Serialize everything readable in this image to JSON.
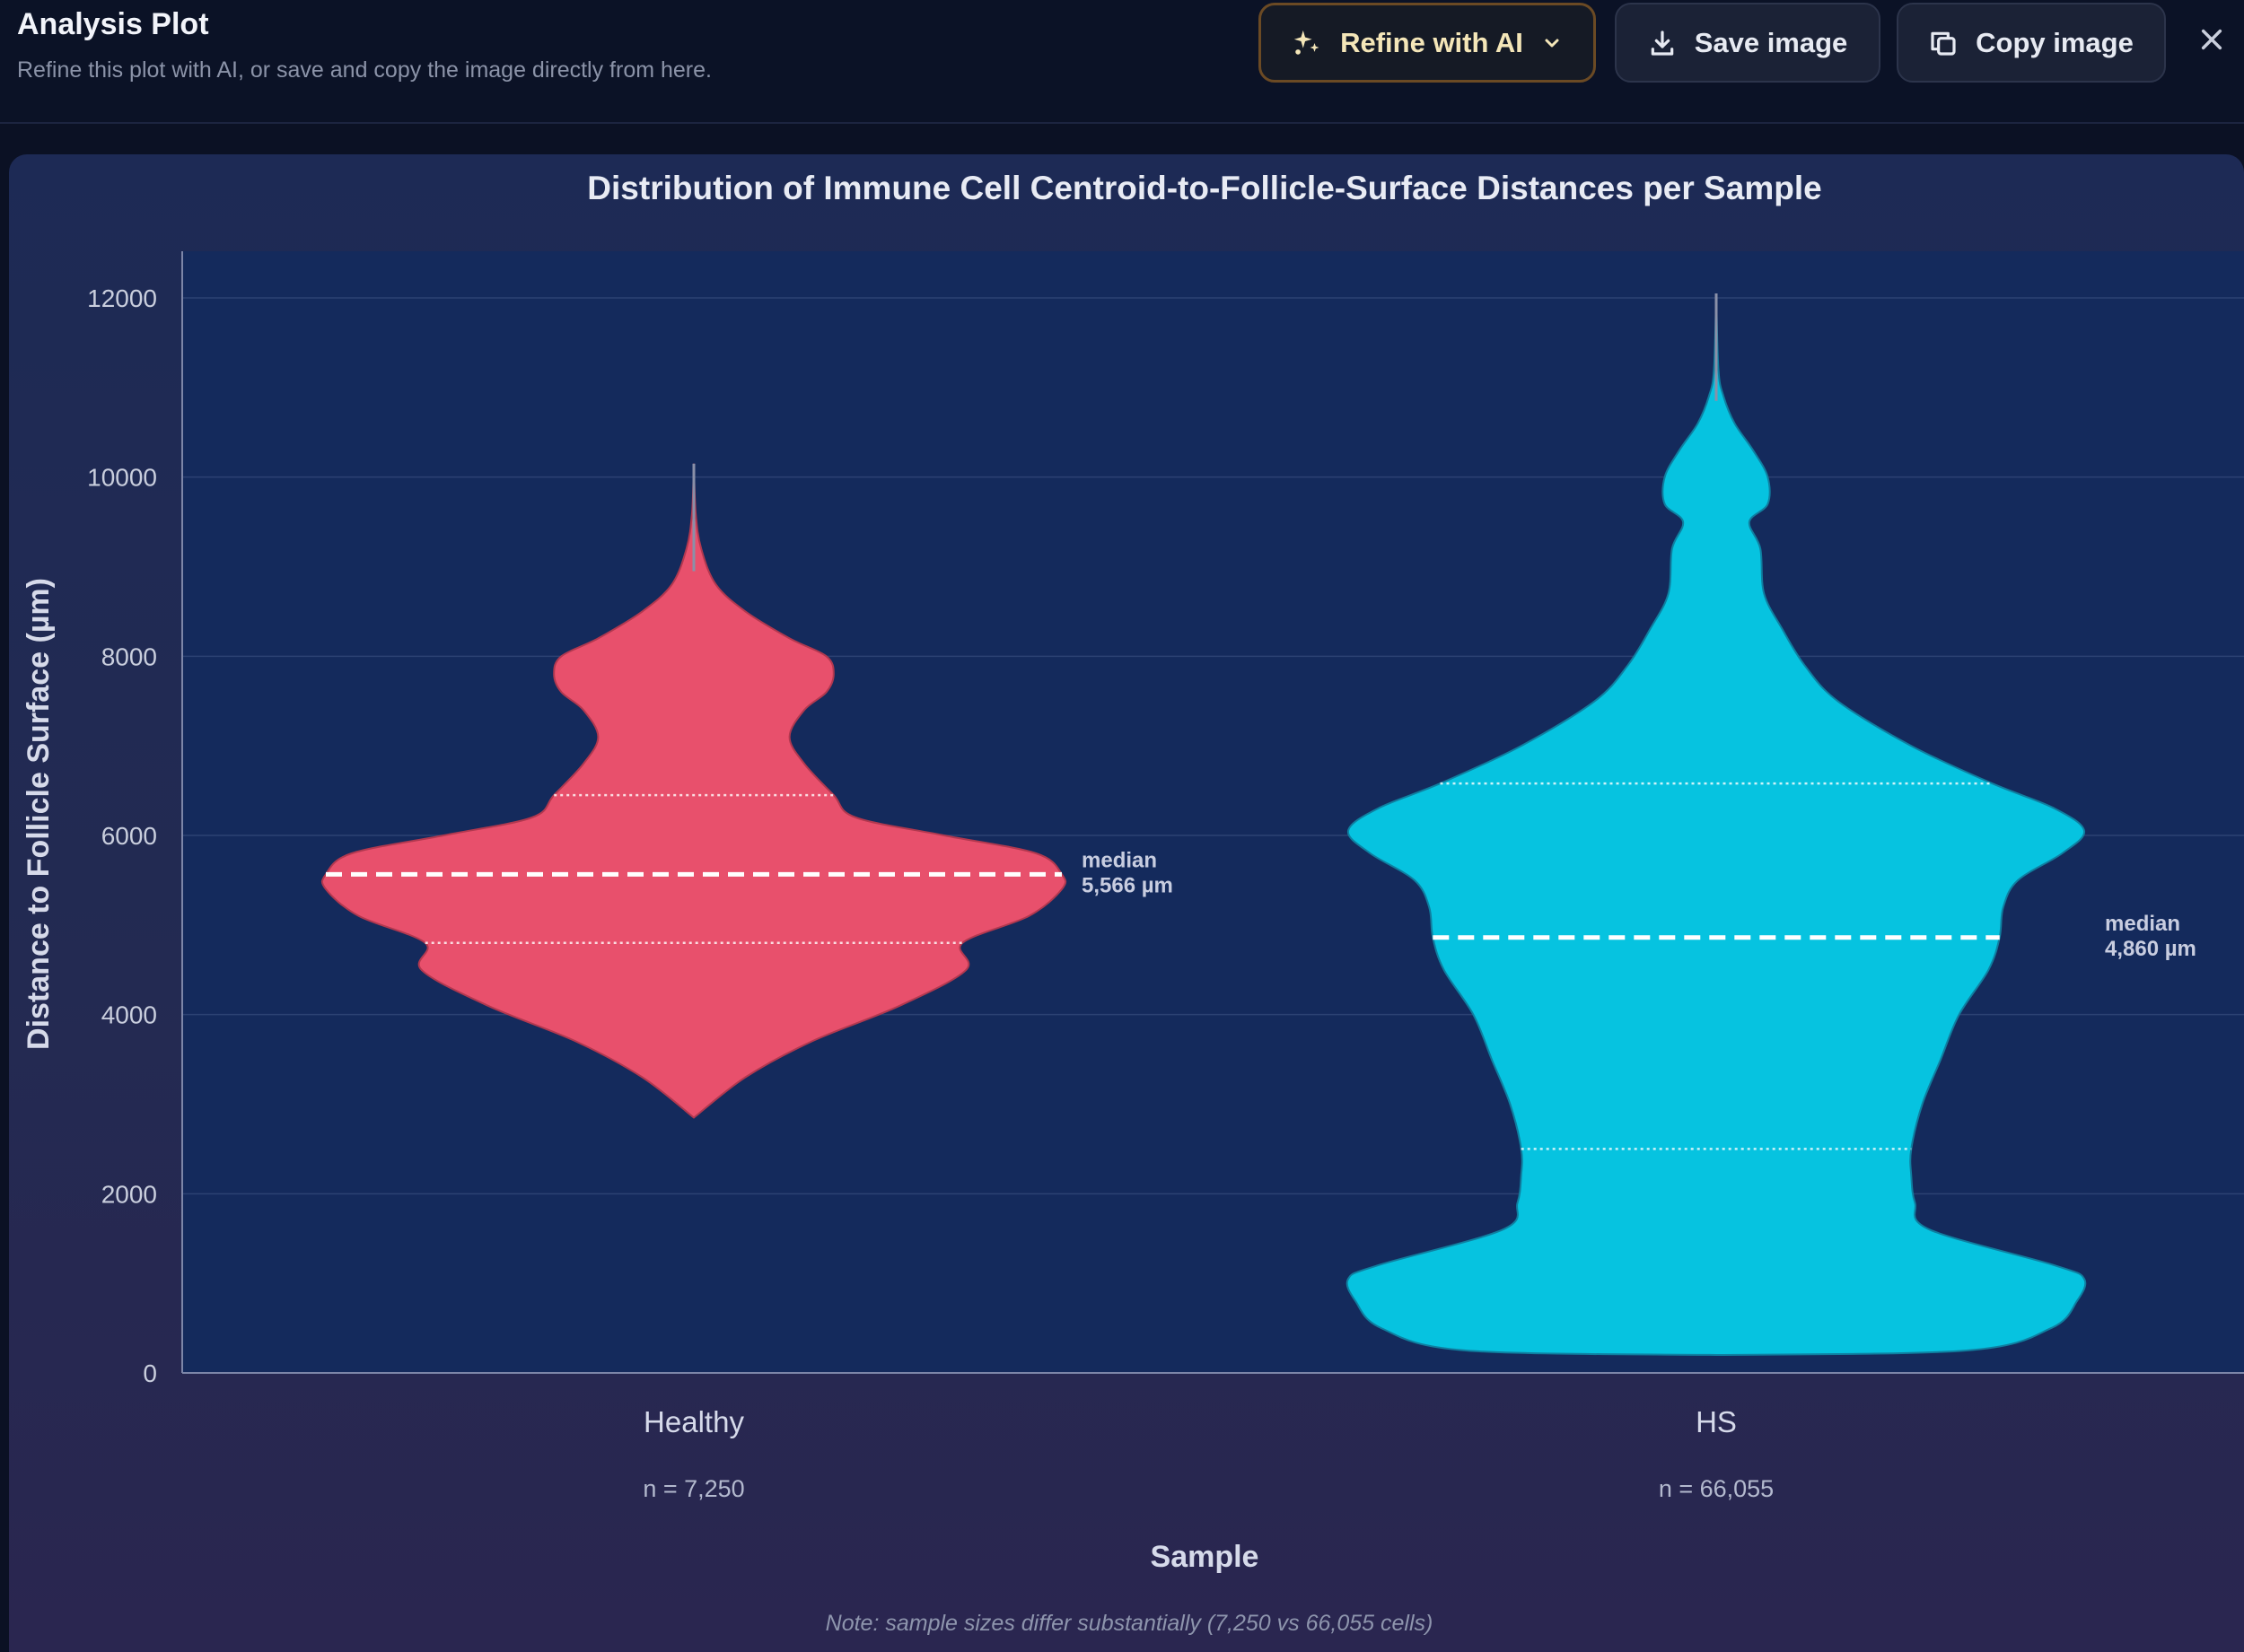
{
  "header": {
    "title": "Analysis Plot",
    "subtitle": "Refine this plot with AI, or save and copy the image directly from here.",
    "refine_label": "Refine with AI",
    "save_label": "Save image",
    "copy_label": "Copy image"
  },
  "colors": {
    "healthy": "#e8506c",
    "hs": "#06c3e0",
    "plot_bg": "#142a5c"
  },
  "icons": {
    "refine": "sparkles-icon",
    "save": "download-icon",
    "copy": "copy-icon",
    "close": "close-icon",
    "dropdown": "chevron-down-icon"
  },
  "chart_data": {
    "type": "violin",
    "title": "Distribution of Immune Cell Centroid-to-Follicle-Surface Distances per Sample",
    "xlabel": "Sample",
    "ylabel": "Distance to Follicle Surface (µm)",
    "ylim": [
      0,
      13200
    ],
    "yticks": [
      0,
      2000,
      4000,
      6000,
      8000,
      10000,
      12000
    ],
    "grid": true,
    "categories": [
      "Healthy",
      "HS"
    ],
    "n_labels": [
      "n = 7,250",
      "n = 66,055"
    ],
    "note": "Note: sample sizes differ substantially (7,250 vs 66,055 cells)",
    "series": [
      {
        "name": "Healthy",
        "n": 7250,
        "median": 5566,
        "median_label_line1": "median",
        "median_label_line2": "5,566 µm",
        "q1": 4800,
        "q3": 6450,
        "min": 2850,
        "max": 10150,
        "density": [
          [
            2850,
            0.0
          ],
          [
            3300,
            0.14
          ],
          [
            3700,
            0.32
          ],
          [
            4100,
            0.56
          ],
          [
            4500,
            0.74
          ],
          [
            4800,
            0.73
          ],
          [
            5100,
            0.91
          ],
          [
            5400,
            1.0
          ],
          [
            5566,
            1.0
          ],
          [
            5800,
            0.93
          ],
          [
            6000,
            0.68
          ],
          [
            6200,
            0.44
          ],
          [
            6450,
            0.38
          ],
          [
            6800,
            0.3
          ],
          [
            7100,
            0.26
          ],
          [
            7400,
            0.3
          ],
          [
            7600,
            0.36
          ],
          [
            7800,
            0.38
          ],
          [
            8000,
            0.36
          ],
          [
            8200,
            0.26
          ],
          [
            8500,
            0.14
          ],
          [
            8800,
            0.06
          ],
          [
            9200,
            0.02
          ],
          [
            9600,
            0.005
          ],
          [
            10150,
            0.0
          ]
        ]
      },
      {
        "name": "HS",
        "n": 66055,
        "median": 4860,
        "median_label_line1": "median",
        "median_label_line2": "4,860 µm",
        "q1": 2500,
        "q3": 6580,
        "min": 200,
        "max": 12050,
        "density": [
          [
            200,
            0.0
          ],
          [
            250,
            0.68
          ],
          [
            500,
            0.91
          ],
          [
            800,
            0.98
          ],
          [
            1050,
            1.0
          ],
          [
            1200,
            0.92
          ],
          [
            1600,
            0.58
          ],
          [
            1900,
            0.54
          ],
          [
            2200,
            0.53
          ],
          [
            2500,
            0.53
          ],
          [
            3000,
            0.56
          ],
          [
            3500,
            0.61
          ],
          [
            4000,
            0.66
          ],
          [
            4500,
            0.74
          ],
          [
            4860,
            0.77
          ],
          [
            5200,
            0.78
          ],
          [
            5500,
            0.82
          ],
          [
            5800,
            0.94
          ],
          [
            6050,
            1.0
          ],
          [
            6300,
            0.92
          ],
          [
            6580,
            0.75
          ],
          [
            7000,
            0.53
          ],
          [
            7500,
            0.33
          ],
          [
            7900,
            0.24
          ],
          [
            8300,
            0.18
          ],
          [
            8700,
            0.13
          ],
          [
            9200,
            0.12
          ],
          [
            9500,
            0.09
          ],
          [
            9700,
            0.14
          ],
          [
            10000,
            0.14
          ],
          [
            10300,
            0.1
          ],
          [
            10600,
            0.05
          ],
          [
            10900,
            0.02
          ],
          [
            11200,
            0.006
          ],
          [
            12050,
            0.0
          ]
        ]
      }
    ]
  }
}
